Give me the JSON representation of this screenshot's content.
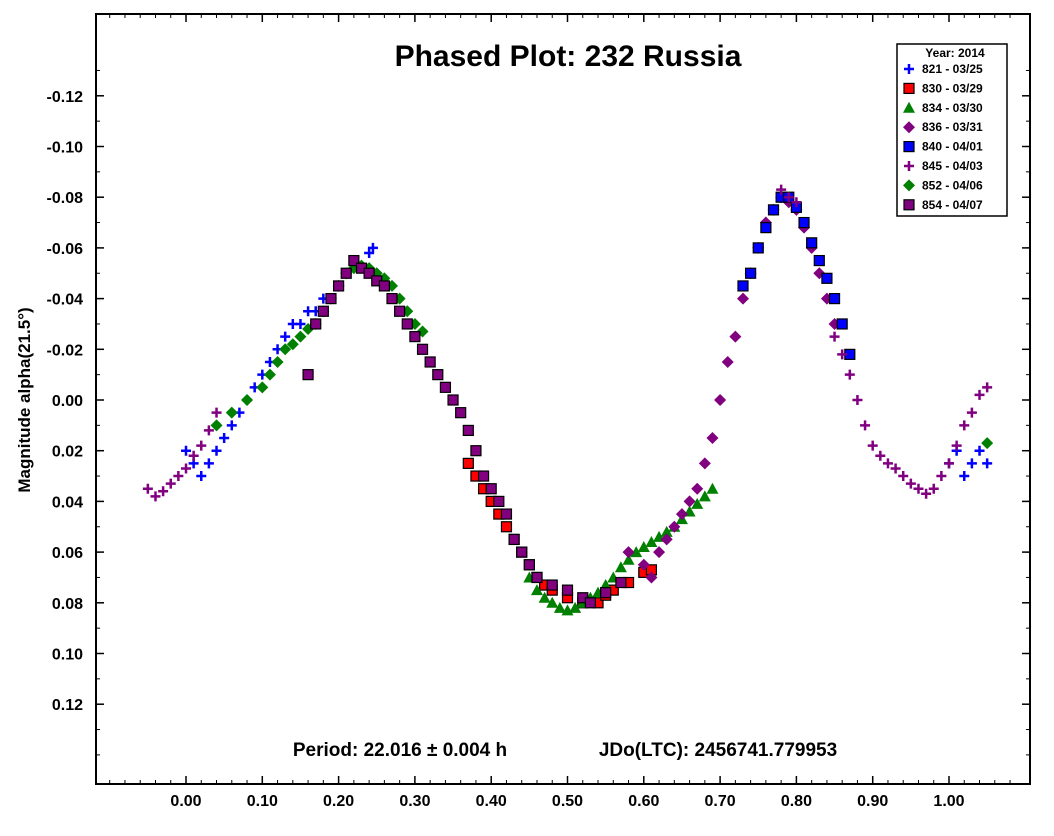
{
  "chart_data": {
    "type": "scatter",
    "title": "Phased Plot: 232 Russia",
    "xlabel": "",
    "ylabel": "Magnitude alpha(21.5°)",
    "xlim": [
      -0.12,
      1.1
    ],
    "ylim": [
      0.15,
      -0.14
    ],
    "y_inverted": true,
    "grid": false,
    "x_ticks": [
      0.0,
      0.1,
      0.2,
      0.3,
      0.4,
      0.5,
      0.6,
      0.7,
      0.8,
      0.9,
      1.0
    ],
    "x_tick_labels": [
      "0.00",
      "0.10",
      "0.20",
      "0.30",
      "0.40",
      "0.50",
      "0.60",
      "0.70",
      "0.80",
      "0.90",
      "1.00"
    ],
    "y_ticks": [
      -0.12,
      -0.1,
      -0.08,
      -0.06,
      -0.04,
      -0.02,
      0.0,
      0.02,
      0.04,
      0.06,
      0.08,
      0.1,
      0.12
    ],
    "y_tick_labels": [
      "-0.12",
      "-0.10",
      "-0.08",
      "-0.06",
      "-0.04",
      "-0.02",
      "0.00",
      "0.02",
      "0.04",
      "0.06",
      "0.08",
      "0.10",
      "0.12"
    ],
    "annotations": {
      "period": "Period: 22.016 ± 0.004 h",
      "epoch": "JDo(LTC): 2456741.779953"
    },
    "legend": {
      "title": "Year: 2014",
      "placement": "top-right"
    },
    "series": [
      {
        "name": "821 - 03/25",
        "marker": "plus",
        "color": "#0000ff",
        "x": [
          0.0,
          0.01,
          0.02,
          0.03,
          0.04,
          0.05,
          0.06,
          0.07,
          0.08,
          0.09,
          0.1,
          0.11,
          0.12,
          0.13,
          0.14,
          0.15,
          0.16,
          0.17,
          0.18,
          0.24,
          0.245,
          1.0,
          1.01,
          1.02,
          1.03,
          1.04,
          1.05
        ],
        "y": [
          0.02,
          0.025,
          0.03,
          0.025,
          0.02,
          0.015,
          0.01,
          0.005,
          0.0,
          -0.005,
          -0.01,
          -0.015,
          -0.02,
          -0.025,
          -0.03,
          -0.03,
          -0.035,
          -0.035,
          -0.04,
          -0.058,
          -0.06,
          0.025,
          0.02,
          0.03,
          0.025,
          0.02,
          0.025
        ]
      },
      {
        "name": "830 - 03/29",
        "marker": "square",
        "color": "#ff0000",
        "x": [
          0.37,
          0.38,
          0.39,
          0.4,
          0.41,
          0.42,
          0.43,
          0.44,
          0.45,
          0.46,
          0.47,
          0.48,
          0.5,
          0.52,
          0.54,
          0.55,
          0.56,
          0.58,
          0.6,
          0.61
        ],
        "y": [
          0.025,
          0.03,
          0.035,
          0.04,
          0.045,
          0.05,
          0.055,
          0.06,
          0.065,
          0.07,
          0.073,
          0.075,
          0.078,
          0.08,
          0.08,
          0.077,
          0.075,
          0.072,
          0.068,
          0.067
        ]
      },
      {
        "name": "834 - 03/30",
        "marker": "triangle",
        "color": "#008000",
        "x": [
          0.45,
          0.46,
          0.47,
          0.48,
          0.49,
          0.5,
          0.51,
          0.52,
          0.53,
          0.54,
          0.55,
          0.56,
          0.57,
          0.58,
          0.59,
          0.6,
          0.61,
          0.62,
          0.63,
          0.64,
          0.65,
          0.66,
          0.67,
          0.68,
          0.69
        ],
        "y": [
          0.07,
          0.075,
          0.078,
          0.08,
          0.082,
          0.083,
          0.082,
          0.08,
          0.078,
          0.076,
          0.073,
          0.07,
          0.066,
          0.063,
          0.06,
          0.058,
          0.056,
          0.054,
          0.052,
          0.05,
          0.047,
          0.044,
          0.041,
          0.038,
          0.035
        ]
      },
      {
        "name": "836 - 03/31",
        "marker": "diamond",
        "color": "#800080",
        "x": [
          0.58,
          0.6,
          0.61,
          0.62,
          0.63,
          0.64,
          0.65,
          0.66,
          0.67,
          0.68,
          0.69,
          0.7,
          0.71,
          0.72,
          0.73,
          0.74,
          0.75,
          0.76,
          0.77,
          0.78,
          0.79,
          0.8,
          0.81,
          0.82,
          0.83,
          0.84,
          0.85
        ],
        "y": [
          0.06,
          0.065,
          0.07,
          0.06,
          0.055,
          0.05,
          0.045,
          0.04,
          0.035,
          0.025,
          0.015,
          0.0,
          -0.015,
          -0.025,
          -0.04,
          -0.05,
          -0.06,
          -0.07,
          -0.075,
          -0.08,
          -0.078,
          -0.075,
          -0.068,
          -0.06,
          -0.05,
          -0.04,
          -0.03
        ]
      },
      {
        "name": "840 - 04/01",
        "marker": "square",
        "color": "#0000ff",
        "x": [
          0.73,
          0.74,
          0.75,
          0.76,
          0.77,
          0.78,
          0.79,
          0.8,
          0.81,
          0.82,
          0.83,
          0.84,
          0.85,
          0.86,
          0.87
        ],
        "y": [
          -0.045,
          -0.05,
          -0.06,
          -0.068,
          -0.075,
          -0.08,
          -0.08,
          -0.076,
          -0.07,
          -0.062,
          -0.055,
          -0.048,
          -0.04,
          -0.03,
          -0.018
        ]
      },
      {
        "name": "845 - 04/03",
        "marker": "plus",
        "color": "#800080",
        "x": [
          -0.05,
          -0.04,
          -0.03,
          -0.02,
          -0.01,
          0.0,
          0.01,
          0.02,
          0.03,
          0.04,
          0.78,
          0.79,
          0.8,
          0.85,
          0.86,
          0.87,
          0.88,
          0.89,
          0.9,
          0.91,
          0.92,
          0.93,
          0.94,
          0.95,
          0.96,
          0.97,
          0.98,
          0.99,
          1.0,
          1.01,
          1.02,
          1.03,
          1.04,
          1.05
        ],
        "y": [
          0.035,
          0.038,
          0.036,
          0.033,
          0.03,
          0.027,
          0.022,
          0.018,
          0.012,
          0.005,
          -0.083,
          -0.08,
          -0.078,
          -0.025,
          -0.018,
          -0.01,
          0.0,
          0.01,
          0.018,
          0.022,
          0.025,
          0.027,
          0.03,
          0.033,
          0.035,
          0.037,
          0.035,
          0.03,
          0.025,
          0.018,
          0.01,
          0.005,
          -0.002,
          -0.005
        ]
      },
      {
        "name": "852 - 04/06",
        "marker": "diamond",
        "color": "#008000",
        "x": [
          0.04,
          0.06,
          0.08,
          0.1,
          0.11,
          0.12,
          0.13,
          0.14,
          0.15,
          0.16,
          0.17,
          0.18,
          0.19,
          0.2,
          0.21,
          0.22,
          0.23,
          0.24,
          0.25,
          0.26,
          0.27,
          0.28,
          0.29,
          0.3,
          0.31,
          1.05
        ],
        "y": [
          0.01,
          0.005,
          0.0,
          -0.005,
          -0.01,
          -0.015,
          -0.02,
          -0.022,
          -0.025,
          -0.028,
          -0.03,
          -0.035,
          -0.04,
          -0.045,
          -0.05,
          -0.052,
          -0.053,
          -0.052,
          -0.05,
          -0.048,
          -0.045,
          -0.04,
          -0.035,
          -0.03,
          -0.027,
          0.017
        ]
      },
      {
        "name": "854 - 04/07",
        "marker": "square",
        "color": "#800080",
        "x": [
          0.16,
          0.17,
          0.18,
          0.19,
          0.2,
          0.21,
          0.22,
          0.23,
          0.24,
          0.25,
          0.26,
          0.27,
          0.28,
          0.29,
          0.3,
          0.31,
          0.32,
          0.33,
          0.34,
          0.35,
          0.36,
          0.37,
          0.38,
          0.39,
          0.4,
          0.41,
          0.42,
          0.43,
          0.44,
          0.45,
          0.46,
          0.48,
          0.5,
          0.52,
          0.53,
          0.55,
          0.57
        ],
        "y": [
          -0.01,
          -0.03,
          -0.035,
          -0.04,
          -0.045,
          -0.05,
          -0.055,
          -0.052,
          -0.05,
          -0.047,
          -0.045,
          -0.04,
          -0.035,
          -0.03,
          -0.025,
          -0.02,
          -0.015,
          -0.01,
          -0.005,
          0.0,
          0.005,
          0.012,
          0.02,
          0.03,
          0.035,
          0.04,
          0.045,
          0.055,
          0.06,
          0.065,
          0.07,
          0.073,
          0.075,
          0.078,
          0.08,
          0.076,
          0.072
        ]
      }
    ]
  }
}
